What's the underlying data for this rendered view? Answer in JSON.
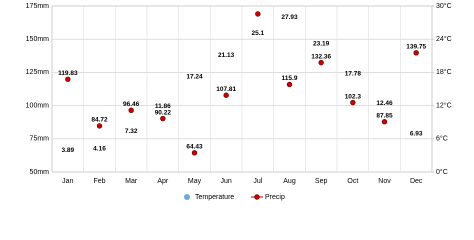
{
  "chart_data": {
    "type": "line",
    "categories": [
      "Jan",
      "Feb",
      "Mar",
      "Apr",
      "May",
      "Jun",
      "Jul",
      "Aug",
      "Sep",
      "Oct",
      "Nov",
      "Dec"
    ],
    "series": [
      {
        "name": "Temperature",
        "color": "#6fa8dc",
        "axis": "y2",
        "values": [
          3.89,
          4.16,
          7.32,
          11.86,
          17.24,
          21.13,
          25.1,
          27.93,
          23.19,
          17.78,
          12.46,
          6.93
        ]
      },
      {
        "name": "Precip",
        "color": "#cc0000",
        "values": [
          119.83,
          84.72,
          96.46,
          90.22,
          64.43,
          107.81,
          169,
          115.9,
          132.36,
          102.3,
          87.85,
          139.75
        ],
        "value_labels": [
          "119.83",
          "84.72",
          "96.46",
          "90.22",
          "64.43",
          "107.81",
          null,
          "115.9",
          "132.36",
          "102.3",
          "87.85",
          "139.75"
        ]
      }
    ],
    "ylim": [
      50,
      175
    ],
    "yticks": [
      {
        "value": 50,
        "label": "50mm"
      },
      {
        "value": 75,
        "label": "75mm"
      },
      {
        "value": 100,
        "label": "100mm"
      },
      {
        "value": 125,
        "label": "125mm"
      },
      {
        "value": 150,
        "label": "150mm"
      },
      {
        "value": 175,
        "label": "175mm"
      }
    ],
    "y2lim": [
      0,
      30
    ],
    "y2ticks": [
      {
        "value": 0,
        "label": "0°C"
      },
      {
        "value": 6,
        "label": "6°C"
      },
      {
        "value": 12,
        "label": "12°C"
      },
      {
        "value": 18,
        "label": "18°C"
      },
      {
        "value": 24,
        "label": "24°C"
      },
      {
        "value": 30,
        "label": "30°C"
      }
    ],
    "grid": true
  }
}
